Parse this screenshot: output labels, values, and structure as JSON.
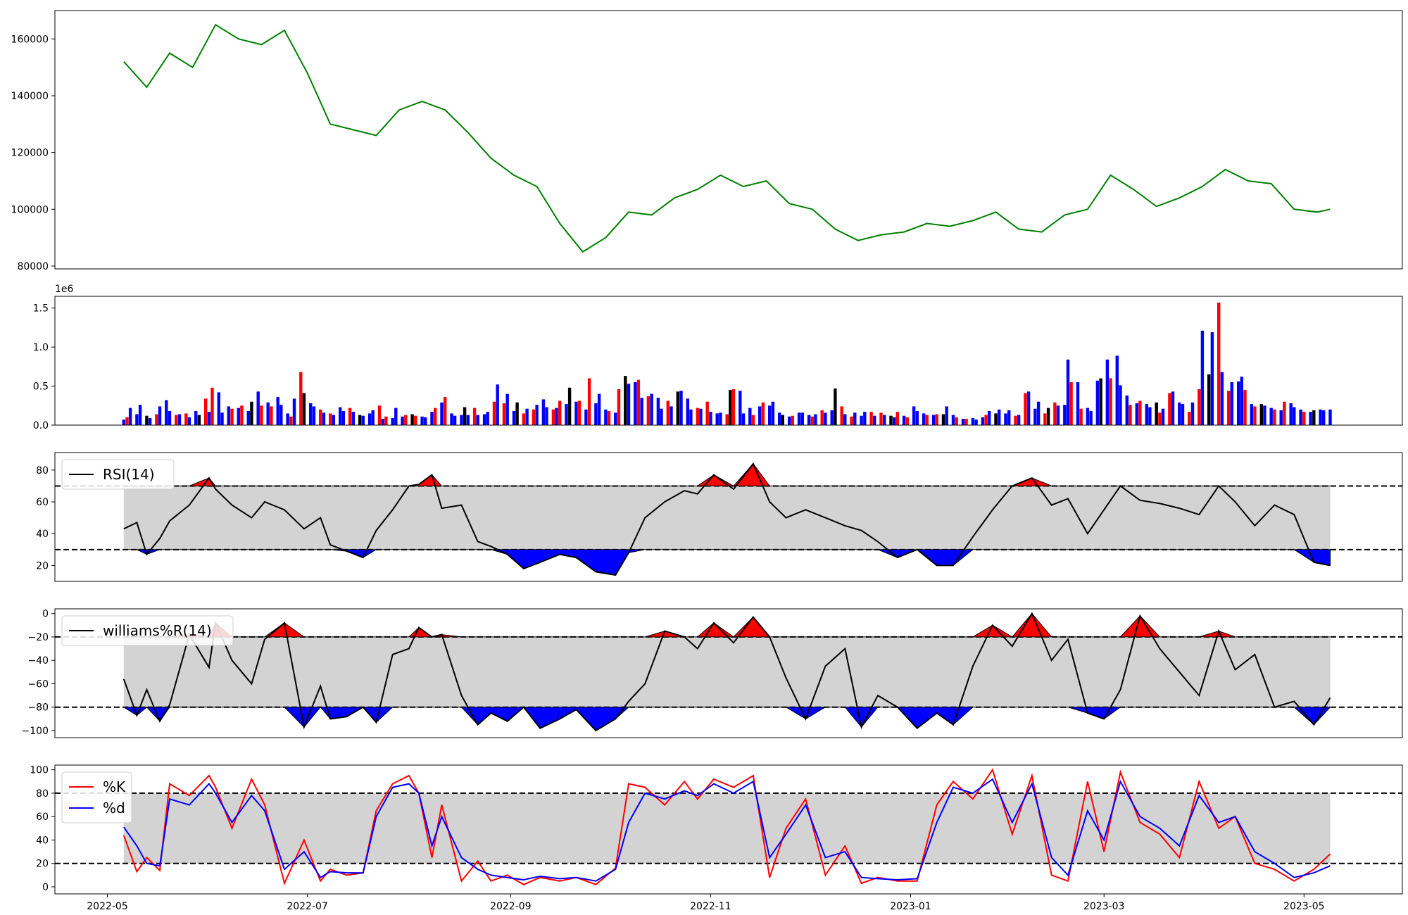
{
  "chart_data": [
    {
      "type": "line",
      "panel": "price",
      "x_dates": [
        "2022-05-06",
        "2022-05-13",
        "2022-05-20",
        "2022-05-27",
        "2022-06-03",
        "2022-06-10",
        "2022-06-17",
        "2022-06-24",
        "2022-07-01",
        "2022-07-08",
        "2022-07-15",
        "2022-07-22",
        "2022-07-29",
        "2022-08-05",
        "2022-08-12",
        "2022-08-19",
        "2022-08-26",
        "2022-09-02",
        "2022-09-09",
        "2022-09-16",
        "2022-09-23",
        "2022-09-30",
        "2022-10-07",
        "2022-10-14",
        "2022-10-21",
        "2022-10-28",
        "2022-11-04",
        "2022-11-11",
        "2022-11-18",
        "2022-11-25",
        "2022-12-02",
        "2022-12-09",
        "2022-12-16",
        "2022-12-23",
        "2022-12-30",
        "2023-01-06",
        "2023-01-13",
        "2023-01-20",
        "2023-01-27",
        "2023-02-03",
        "2023-02-10",
        "2023-02-17",
        "2023-02-24",
        "2023-03-03",
        "2023-03-10",
        "2023-03-17",
        "2023-03-24",
        "2023-03-31",
        "2023-04-07",
        "2023-04-14",
        "2023-04-21",
        "2023-04-28",
        "2023-05-05",
        "2023-05-09"
      ],
      "y": [
        152000,
        143000,
        155000,
        150000,
        165000,
        160000,
        158000,
        163000,
        148000,
        130000,
        128000,
        126000,
        135000,
        138000,
        135000,
        127000,
        118000,
        112000,
        108000,
        95000,
        85000,
        90000,
        99000,
        98000,
        104000,
        107000,
        112000,
        108000,
        110000,
        102000,
        100000,
        93000,
        89000,
        91000,
        92000,
        95000,
        94000,
        96000,
        99000,
        93000,
        92000,
        98000,
        100000,
        112000,
        107000,
        101000,
        104000,
        108000,
        114000,
        110000,
        109000,
        100000,
        99000,
        100000
      ],
      "color": "#008000",
      "ylim": [
        79000,
        170000
      ],
      "yticks": [
        "80000",
        "100000",
        "120000",
        "140000",
        "160000"
      ]
    },
    {
      "type": "bar",
      "panel": "volume",
      "scale_label": "1e6",
      "ylim": [
        0,
        1.65
      ],
      "yticks": [
        "0.0",
        "0.5",
        "1.0",
        "1.5"
      ],
      "x_range": [
        "2022-05-06",
        "2023-05-09"
      ],
      "values": [
        0.07,
        0.1,
        0.22,
        0.14,
        0.26,
        0.12,
        0.09,
        0.14,
        0.24,
        0.32,
        0.18,
        0.13,
        0.14,
        0.15,
        0.1,
        0.18,
        0.13,
        0.34,
        0.17,
        0.48,
        0.42,
        0.16,
        0.24,
        0.21,
        0.22,
        0.25,
        0.18,
        0.3,
        0.43,
        0.25,
        0.29,
        0.24,
        0.36,
        0.26,
        0.15,
        0.11,
        0.34,
        0.68,
        0.41,
        0.28,
        0.24,
        0.2,
        0.16,
        0.15,
        0.13,
        0.23,
        0.18,
        0.22,
        0.17,
        0.13,
        0.12,
        0.15,
        0.19,
        0.25,
        0.08,
        0.11,
        0.09,
        0.22,
        0.11,
        0.13,
        0.14,
        0.12,
        0.11,
        0.1,
        0.17,
        0.22,
        0.29,
        0.36,
        0.15,
        0.12,
        0.13,
        0.23,
        0.13,
        0.22,
        0.13,
        0.14,
        0.17,
        0.3,
        0.52,
        0.28,
        0.4,
        0.18,
        0.29,
        0.15,
        0.21,
        0.2,
        0.26,
        0.33,
        0.23,
        0.2,
        0.22,
        0.31,
        0.27,
        0.48,
        0.3,
        0.31,
        0.2,
        0.6,
        0.28,
        0.4,
        0.2,
        0.18,
        0.16,
        0.46,
        0.63,
        0.53,
        0.55,
        0.58,
        0.35,
        0.37,
        0.4,
        0.35,
        0.21,
        0.31,
        0.24,
        0.43,
        0.44,
        0.34,
        0.2,
        0.22,
        0.21,
        0.3,
        0.17,
        0.15,
        0.16,
        0.14,
        0.45,
        0.46,
        0.44,
        0.15,
        0.22,
        0.13,
        0.24,
        0.29,
        0.25,
        0.3,
        0.16,
        0.13,
        0.11,
        0.12,
        0.16,
        0.16,
        0.13,
        0.11,
        0.14,
        0.19,
        0.16,
        0.19,
        0.47,
        0.24,
        0.14,
        0.11,
        0.16,
        0.12,
        0.17,
        0.17,
        0.12,
        0.16,
        0.13,
        0.12,
        0.1,
        0.17,
        0.12,
        0.1,
        0.24,
        0.18,
        0.15,
        0.13,
        0.13,
        0.14,
        0.14,
        0.24,
        0.13,
        0.1,
        0.08,
        0.08,
        0.09,
        0.07,
        0.1,
        0.13,
        0.18,
        0.15,
        0.2,
        0.15,
        0.19,
        0.12,
        0.13,
        0.41,
        0.43,
        0.21,
        0.3,
        0.15,
        0.22,
        0.29,
        0.25,
        0.26,
        0.84,
        0.55,
        0.55,
        0.21,
        0.22,
        0.18,
        0.57,
        0.6,
        0.84,
        0.6,
        0.89,
        0.51,
        0.38,
        0.26,
        0.28,
        0.31,
        0.27,
        0.23,
        0.29,
        0.16,
        0.21,
        0.41,
        0.43,
        0.29,
        0.27,
        0.17,
        0.29,
        0.46,
        1.21,
        0.65,
        1.19,
        1.57,
        0.68,
        0.44,
        0.55,
        0.56,
        0.62,
        0.45,
        0.27,
        0.24,
        0.27,
        0.25,
        0.22,
        0.2,
        0.19,
        0.3,
        0.28,
        0.23,
        0.2,
        0.17,
        0.17,
        0.19,
        0.2,
        0.19,
        0.2
      ],
      "colors": [
        "#ff0000",
        "#0000ff",
        "#000000"
      ]
    },
    {
      "type": "line",
      "panel": "rsi",
      "legend": "RSI(14)",
      "color": "#000000",
      "ylim": [
        10,
        91
      ],
      "yticks": [
        "20",
        "40",
        "60",
        "80"
      ],
      "upper": 70,
      "lower": 30,
      "x_dates": [
        "2022-05-06",
        "2022-05-10",
        "2022-05-13",
        "2022-05-17",
        "2022-05-20",
        "2022-05-26",
        "2022-06-01",
        "2022-06-03",
        "2022-06-08",
        "2022-06-14",
        "2022-06-18",
        "2022-06-24",
        "2022-06-30",
        "2022-07-05",
        "2022-07-08",
        "2022-07-13",
        "2022-07-18",
        "2022-07-22",
        "2022-07-27",
        "2022-08-01",
        "2022-08-04",
        "2022-08-08",
        "2022-08-11",
        "2022-08-17",
        "2022-08-22",
        "2022-08-26",
        "2022-08-31",
        "2022-09-05",
        "2022-09-10",
        "2022-09-16",
        "2022-09-21",
        "2022-09-27",
        "2022-10-03",
        "2022-10-07",
        "2022-10-12",
        "2022-10-18",
        "2022-10-24",
        "2022-10-28",
        "2022-11-02",
        "2022-11-08",
        "2022-11-14",
        "2022-11-19",
        "2022-11-24",
        "2022-11-30",
        "2022-12-06",
        "2022-12-12",
        "2022-12-17",
        "2022-12-22",
        "2022-12-28",
        "2023-01-03",
        "2023-01-09",
        "2023-01-14",
        "2023-01-20",
        "2023-01-26",
        "2023-02-01",
        "2023-02-07",
        "2023-02-13",
        "2023-02-18",
        "2023-02-24",
        "2023-03-01",
        "2023-03-06",
        "2023-03-12",
        "2023-03-18",
        "2023-03-24",
        "2023-03-30",
        "2023-04-05",
        "2023-04-10",
        "2023-04-16",
        "2023-04-22",
        "2023-04-28",
        "2023-05-04",
        "2023-05-09"
      ],
      "y": [
        43,
        47,
        27,
        37,
        48,
        58,
        75,
        68,
        58,
        50,
        60,
        55,
        43,
        50,
        33,
        29,
        25,
        42,
        55,
        70,
        71,
        77,
        56,
        58,
        35,
        32,
        27,
        18,
        22,
        27,
        25,
        16,
        14,
        28,
        50,
        60,
        67,
        65,
        77,
        68,
        84,
        60,
        50,
        55,
        50,
        45,
        42,
        35,
        25,
        30,
        20,
        20,
        38,
        55,
        70,
        75,
        58,
        62,
        40,
        55,
        70,
        61,
        59,
        56,
        52,
        70,
        60,
        45,
        58,
        52,
        22,
        20
      ]
    },
    {
      "type": "line",
      "panel": "williams",
      "legend": "williams%R(14)",
      "color": "#000000",
      "ylim": [
        -106,
        4
      ],
      "yticks": [
        "0",
        "−20",
        "−40",
        "−60",
        "−80",
        "−100"
      ],
      "upper": -20,
      "lower": -80,
      "x_dates": [
        "2022-05-06",
        "2022-05-10",
        "2022-05-13",
        "2022-05-17",
        "2022-05-20",
        "2022-05-26",
        "2022-06-01",
        "2022-06-03",
        "2022-06-08",
        "2022-06-14",
        "2022-06-18",
        "2022-06-24",
        "2022-06-30",
        "2022-07-05",
        "2022-07-08",
        "2022-07-13",
        "2022-07-18",
        "2022-07-22",
        "2022-07-27",
        "2022-08-01",
        "2022-08-04",
        "2022-08-08",
        "2022-08-11",
        "2022-08-17",
        "2022-08-22",
        "2022-08-26",
        "2022-08-31",
        "2022-09-05",
        "2022-09-10",
        "2022-09-16",
        "2022-09-21",
        "2022-09-27",
        "2022-10-03",
        "2022-10-07",
        "2022-10-12",
        "2022-10-18",
        "2022-10-24",
        "2022-10-28",
        "2022-11-02",
        "2022-11-08",
        "2022-11-14",
        "2022-11-19",
        "2022-11-24",
        "2022-11-30",
        "2022-12-06",
        "2022-12-12",
        "2022-12-17",
        "2022-12-22",
        "2022-12-28",
        "2023-01-03",
        "2023-01-09",
        "2023-01-14",
        "2023-01-20",
        "2023-01-26",
        "2023-02-01",
        "2023-02-07",
        "2023-02-13",
        "2023-02-18",
        "2023-02-24",
        "2023-03-01",
        "2023-03-06",
        "2023-03-12",
        "2023-03-18",
        "2023-03-24",
        "2023-03-30",
        "2023-04-05",
        "2023-04-10",
        "2023-04-16",
        "2023-04-22",
        "2023-04-28",
        "2023-05-04",
        "2023-05-09"
      ],
      "y": [
        -56,
        -87,
        -65,
        -92,
        -78,
        -18,
        -46,
        -8,
        -40,
        -60,
        -22,
        -8,
        -97,
        -62,
        -90,
        -88,
        -80,
        -93,
        -35,
        -30,
        -12,
        -20,
        -18,
        -70,
        -95,
        -85,
        -92,
        -80,
        -98,
        -90,
        -82,
        -100,
        -90,
        -75,
        -60,
        -15,
        -20,
        -30,
        -8,
        -25,
        -3,
        -20,
        -55,
        -90,
        -45,
        -30,
        -97,
        -70,
        -80,
        -98,
        -85,
        -95,
        -45,
        -10,
        -28,
        0,
        -40,
        -22,
        -85,
        -90,
        -65,
        -2,
        -30,
        -50,
        -70,
        -15,
        -48,
        -35,
        -80,
        -75,
        -95,
        -72
      ]
    },
    {
      "type": "line",
      "panel": "stochastic",
      "ylim": [
        -6,
        104
      ],
      "yticks": [
        "0",
        "20",
        "40",
        "60",
        "80",
        "100"
      ],
      "upper": 80,
      "lower": 20,
      "x_dates": [
        "2022-05-06",
        "2022-05-10",
        "2022-05-13",
        "2022-05-17",
        "2022-05-20",
        "2022-05-26",
        "2022-06-01",
        "2022-06-03",
        "2022-06-08",
        "2022-06-14",
        "2022-06-18",
        "2022-06-24",
        "2022-06-30",
        "2022-07-05",
        "2022-07-08",
        "2022-07-13",
        "2022-07-18",
        "2022-07-22",
        "2022-07-27",
        "2022-08-01",
        "2022-08-04",
        "2022-08-08",
        "2022-08-11",
        "2022-08-17",
        "2022-08-22",
        "2022-08-26",
        "2022-08-31",
        "2022-09-05",
        "2022-09-10",
        "2022-09-16",
        "2022-09-21",
        "2022-09-27",
        "2022-10-03",
        "2022-10-07",
        "2022-10-12",
        "2022-10-18",
        "2022-10-24",
        "2022-10-28",
        "2022-11-02",
        "2022-11-08",
        "2022-11-14",
        "2022-11-19",
        "2022-11-24",
        "2022-11-30",
        "2022-12-06",
        "2022-12-12",
        "2022-12-17",
        "2022-12-22",
        "2022-12-28",
        "2023-01-03",
        "2023-01-09",
        "2023-01-14",
        "2023-01-20",
        "2023-01-26",
        "2023-02-01",
        "2023-02-07",
        "2023-02-13",
        "2023-02-18",
        "2023-02-24",
        "2023-03-01",
        "2023-03-06",
        "2023-03-12",
        "2023-03-18",
        "2023-03-24",
        "2023-03-30",
        "2023-04-05",
        "2023-04-10",
        "2023-04-16",
        "2023-04-22",
        "2023-04-28",
        "2023-05-04",
        "2023-05-09"
      ],
      "series": [
        {
          "name": "%K",
          "color": "#ff0000",
          "values": [
            44,
            13,
            25,
            14,
            88,
            78,
            95,
            85,
            50,
            92,
            70,
            3,
            40,
            5,
            15,
            10,
            12,
            65,
            88,
            95,
            80,
            25,
            70,
            5,
            22,
            5,
            10,
            2,
            8,
            5,
            8,
            2,
            16,
            88,
            85,
            70,
            90,
            75,
            92,
            85,
            95,
            8,
            50,
            75,
            10,
            35,
            3,
            8,
            5,
            5,
            70,
            90,
            75,
            100,
            45,
            95,
            10,
            5,
            90,
            30,
            98,
            55,
            45,
            25,
            90,
            50,
            60,
            20,
            15,
            5,
            15,
            28
          ],
          "legend": "%K"
        },
        {
          "name": "%d",
          "color": "#0000ff",
          "values": [
            51,
            35,
            20,
            18,
            75,
            70,
            88,
            80,
            55,
            78,
            65,
            15,
            30,
            8,
            13,
            12,
            12,
            60,
            85,
            88,
            80,
            35,
            60,
            25,
            15,
            10,
            8,
            6,
            9,
            7,
            8,
            5,
            15,
            55,
            80,
            75,
            82,
            78,
            88,
            80,
            90,
            25,
            45,
            70,
            25,
            30,
            8,
            7,
            6,
            7,
            55,
            85,
            80,
            92,
            55,
            88,
            25,
            10,
            65,
            40,
            90,
            60,
            50,
            35,
            78,
            55,
            60,
            30,
            20,
            8,
            12,
            18
          ],
          "legend": "%d"
        }
      ]
    }
  ],
  "x_axis": {
    "tick_labels": [
      "2022-05",
      "2022-07",
      "2022-09",
      "2022-11",
      "2023-01",
      "2023-03",
      "2023-05"
    ],
    "range": [
      "2022-04-15",
      "2023-05-31"
    ]
  }
}
